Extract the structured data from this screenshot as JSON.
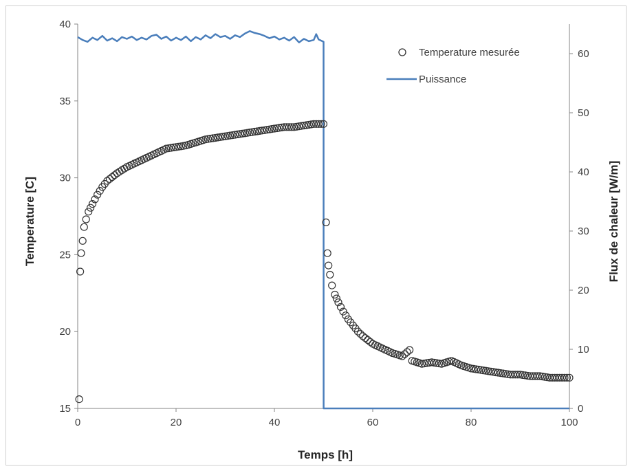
{
  "chart_data": {
    "type": "scatter+line",
    "xlabel": "Temps [h]",
    "ylabel_left": "Temperature [C]",
    "ylabel_right": "Flux de chaleur [W/m]",
    "xlim": [
      0,
      100
    ],
    "ylim_left": [
      15,
      40
    ],
    "ylim_right": [
      0,
      65
    ],
    "x_ticks": [
      0,
      20,
      40,
      60,
      80,
      100
    ],
    "y_left_ticks": [
      15,
      20,
      25,
      30,
      35,
      40
    ],
    "y_right_ticks": [
      0,
      10,
      20,
      30,
      40,
      50,
      60
    ],
    "grid": false,
    "legend_position": "top-right",
    "series": [
      {
        "name": "Temperature mesurée",
        "kind": "scatter",
        "axis": "left",
        "marker": "open-circle",
        "color": "#333333",
        "points": [
          [
            0.3,
            15.6
          ],
          [
            0.5,
            23.9
          ],
          [
            0.7,
            25.1
          ],
          [
            1.0,
            25.9
          ],
          [
            1.3,
            26.8
          ],
          [
            1.7,
            27.3
          ],
          [
            2.2,
            27.8
          ],
          [
            3.0,
            28.3
          ],
          [
            4.0,
            28.9
          ],
          [
            5.0,
            29.4
          ],
          [
            6.0,
            29.8
          ],
          [
            8.0,
            30.3
          ],
          [
            10.0,
            30.7
          ],
          [
            12.0,
            31.0
          ],
          [
            14.0,
            31.3
          ],
          [
            16.0,
            31.6
          ],
          [
            18.0,
            31.9
          ],
          [
            20.0,
            32.0
          ],
          [
            22.0,
            32.1
          ],
          [
            24.0,
            32.3
          ],
          [
            26.0,
            32.5
          ],
          [
            28.0,
            32.6
          ],
          [
            30.0,
            32.7
          ],
          [
            32.0,
            32.8
          ],
          [
            34.0,
            32.9
          ],
          [
            36.0,
            33.0
          ],
          [
            38.0,
            33.1
          ],
          [
            40.0,
            33.2
          ],
          [
            42.0,
            33.3
          ],
          [
            44.0,
            33.3
          ],
          [
            46.0,
            33.4
          ],
          [
            48.0,
            33.5
          ],
          [
            50.0,
            33.5
          ],
          [
            50.5,
            27.1
          ],
          [
            50.8,
            25.1
          ],
          [
            51.0,
            24.3
          ],
          [
            51.3,
            23.7
          ],
          [
            51.7,
            23.0
          ],
          [
            52.3,
            22.4
          ],
          [
            53.0,
            21.9
          ],
          [
            54.0,
            21.3
          ],
          [
            55.0,
            20.8
          ],
          [
            56.0,
            20.4
          ],
          [
            57.0,
            20.0
          ],
          [
            58.0,
            19.7
          ],
          [
            60.0,
            19.2
          ],
          [
            62.0,
            18.9
          ],
          [
            64.0,
            18.6
          ],
          [
            66.0,
            18.4
          ],
          [
            67.5,
            18.8
          ],
          [
            68.0,
            18.1
          ],
          [
            70.0,
            17.9
          ],
          [
            72.0,
            18.0
          ],
          [
            74.0,
            17.9
          ],
          [
            76.0,
            18.1
          ],
          [
            78.0,
            17.8
          ],
          [
            80.0,
            17.6
          ],
          [
            82.0,
            17.5
          ],
          [
            84.0,
            17.4
          ],
          [
            86.0,
            17.3
          ],
          [
            88.0,
            17.2
          ],
          [
            90.0,
            17.2
          ],
          [
            92.0,
            17.1
          ],
          [
            94.0,
            17.1
          ],
          [
            96.0,
            17.0
          ],
          [
            98.0,
            17.0
          ],
          [
            100.0,
            17.0
          ]
        ]
      },
      {
        "name": "Puissance",
        "kind": "line",
        "axis": "right",
        "color": "#4a7ebb",
        "points": [
          [
            0,
            62.8
          ],
          [
            1,
            62.3
          ],
          [
            2,
            62.0
          ],
          [
            3,
            62.7
          ],
          [
            4,
            62.3
          ],
          [
            5,
            63.0
          ],
          [
            6,
            62.2
          ],
          [
            7,
            62.6
          ],
          [
            8,
            62.1
          ],
          [
            9,
            62.8
          ],
          [
            10,
            62.5
          ],
          [
            11,
            62.9
          ],
          [
            12,
            62.3
          ],
          [
            13,
            62.7
          ],
          [
            14,
            62.4
          ],
          [
            15,
            63.0
          ],
          [
            16,
            63.2
          ],
          [
            17,
            62.5
          ],
          [
            18,
            62.9
          ],
          [
            19,
            62.2
          ],
          [
            20,
            62.7
          ],
          [
            21,
            62.3
          ],
          [
            22,
            62.9
          ],
          [
            23,
            62.1
          ],
          [
            24,
            62.8
          ],
          [
            25,
            62.4
          ],
          [
            26,
            63.1
          ],
          [
            27,
            62.6
          ],
          [
            28,
            63.3
          ],
          [
            29,
            62.8
          ],
          [
            30,
            63.0
          ],
          [
            31,
            62.5
          ],
          [
            32,
            63.1
          ],
          [
            33,
            62.8
          ],
          [
            34,
            63.4
          ],
          [
            35,
            63.8
          ],
          [
            36,
            63.5
          ],
          [
            37,
            63.3
          ],
          [
            38,
            63.0
          ],
          [
            39,
            62.6
          ],
          [
            40,
            62.9
          ],
          [
            41,
            62.4
          ],
          [
            42,
            62.7
          ],
          [
            43,
            62.2
          ],
          [
            44,
            62.8
          ],
          [
            45,
            61.9
          ],
          [
            46,
            62.5
          ],
          [
            47,
            62.1
          ],
          [
            48,
            62.3
          ],
          [
            48.5,
            63.3
          ],
          [
            49,
            62.4
          ],
          [
            50,
            62.0
          ],
          [
            50.01,
            0
          ],
          [
            100,
            0
          ]
        ]
      }
    ]
  }
}
